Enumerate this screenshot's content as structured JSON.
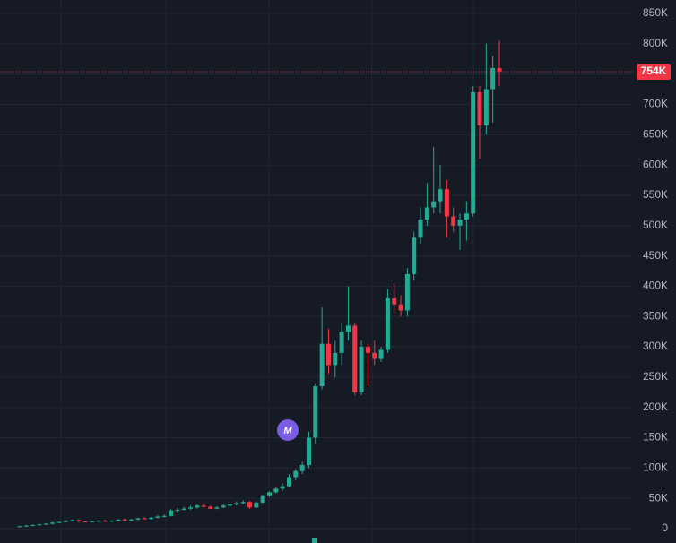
{
  "chart_data": {
    "type": "candlestick",
    "up_color": "#22ab94",
    "down_color": "#f23645",
    "grid": true,
    "ylim": [
      0,
      850000
    ],
    "yticks": [
      0,
      {
        "value": 50000,
        "label": "50K"
      },
      {
        "value": 100000,
        "label": "100K"
      },
      {
        "value": 150000,
        "label": "150K"
      },
      {
        "value": 200000,
        "label": "200K"
      },
      {
        "value": 250000,
        "label": "250K"
      },
      {
        "value": 300000,
        "label": "300K"
      },
      {
        "value": 350000,
        "label": "350K"
      },
      {
        "value": 400000,
        "label": "400K"
      },
      {
        "value": 450000,
        "label": "450K"
      },
      {
        "value": 500000,
        "label": "500K"
      },
      {
        "value": 550000,
        "label": "550K"
      },
      {
        "value": 600000,
        "label": "600K"
      },
      {
        "value": 650000,
        "label": "650K"
      },
      {
        "value": 700000,
        "label": "700K"
      },
      {
        "value": 750000,
        "label": "750K"
      },
      {
        "value": 800000,
        "label": "800K"
      },
      {
        "value": 850000,
        "label": "850K"
      }
    ],
    "current_price": {
      "value": 754000,
      "label": "754K"
    },
    "marker": "M",
    "ohlc": [
      [
        3000,
        5000,
        2000,
        4000
      ],
      [
        4000,
        6000,
        3000,
        5000
      ],
      [
        5000,
        7000,
        4000,
        6000
      ],
      [
        6000,
        8000,
        5000,
        7000
      ],
      [
        7000,
        9000,
        6000,
        8000
      ],
      [
        8000,
        11000,
        7000,
        10000
      ],
      [
        10000,
        12000,
        9000,
        11000
      ],
      [
        11000,
        14000,
        10000,
        13000
      ],
      [
        13000,
        15000,
        12000,
        14000
      ],
      [
        14000,
        16000,
        10000,
        12000
      ],
      [
        12000,
        13000,
        10000,
        11000
      ],
      [
        11000,
        13000,
        10000,
        12000
      ],
      [
        12000,
        14000,
        11000,
        13000
      ],
      [
        13000,
        15000,
        11000,
        12000
      ],
      [
        12000,
        14000,
        11000,
        13000
      ],
      [
        13000,
        16000,
        12000,
        15000
      ],
      [
        15000,
        17000,
        12000,
        13000
      ],
      [
        13000,
        16000,
        12000,
        15000
      ],
      [
        15000,
        18000,
        14000,
        17000
      ],
      [
        17000,
        19000,
        15000,
        16000
      ],
      [
        16000,
        19000,
        15000,
        18000
      ],
      [
        18000,
        22000,
        17000,
        20000
      ],
      [
        20000,
        23000,
        18000,
        21000
      ],
      [
        21000,
        32000,
        20000,
        30000
      ],
      [
        30000,
        34000,
        27000,
        31000
      ],
      [
        31000,
        36000,
        30000,
        33000
      ],
      [
        33000,
        38000,
        31000,
        35000
      ],
      [
        35000,
        40000,
        33000,
        38000
      ],
      [
        38000,
        42000,
        35000,
        36000
      ],
      [
        36000,
        38000,
        32000,
        33000
      ],
      [
        33000,
        37000,
        32000,
        35000
      ],
      [
        35000,
        40000,
        34000,
        38000
      ],
      [
        38000,
        42000,
        36000,
        40000
      ],
      [
        40000,
        45000,
        38000,
        42000
      ],
      [
        42000,
        47000,
        40000,
        44000
      ],
      [
        44000,
        46000,
        33000,
        35000
      ],
      [
        35000,
        45000,
        34000,
        43000
      ],
      [
        43000,
        56000,
        42000,
        55000
      ],
      [
        55000,
        62000,
        52000,
        60000
      ],
      [
        60000,
        68000,
        58000,
        66000
      ],
      [
        66000,
        75000,
        62000,
        70000
      ],
      [
        70000,
        90000,
        68000,
        85000
      ],
      [
        85000,
        98000,
        80000,
        95000
      ],
      [
        95000,
        110000,
        90000,
        105000
      ],
      [
        105000,
        160000,
        100000,
        150000
      ],
      [
        150000,
        240000,
        140000,
        235000
      ],
      [
        235000,
        365000,
        230000,
        305000
      ],
      [
        305000,
        330000,
        255000,
        270000
      ],
      [
        270000,
        310000,
        250000,
        290000
      ],
      [
        290000,
        340000,
        270000,
        325000
      ],
      [
        325000,
        400000,
        310000,
        335000
      ],
      [
        335000,
        340000,
        220000,
        225000
      ],
      [
        225000,
        310000,
        220000,
        300000
      ],
      [
        300000,
        305000,
        235000,
        290000
      ],
      [
        290000,
        310000,
        270000,
        280000
      ],
      [
        280000,
        300000,
        275000,
        295000
      ],
      [
        295000,
        395000,
        290000,
        380000
      ],
      [
        380000,
        405000,
        355000,
        370000
      ],
      [
        370000,
        385000,
        350000,
        360000
      ],
      [
        360000,
        430000,
        350000,
        420000
      ],
      [
        420000,
        490000,
        410000,
        480000
      ],
      [
        480000,
        530000,
        470000,
        510000
      ],
      [
        510000,
        570000,
        500000,
        530000
      ],
      [
        530000,
        630000,
        520000,
        540000
      ],
      [
        540000,
        600000,
        520000,
        560000
      ],
      [
        560000,
        575000,
        480000,
        515000
      ],
      [
        515000,
        530000,
        490000,
        500000
      ],
      [
        500000,
        520000,
        460000,
        510000
      ],
      [
        510000,
        540000,
        475000,
        520000
      ],
      [
        520000,
        730000,
        515000,
        720000
      ],
      [
        720000,
        730000,
        610000,
        665000
      ],
      [
        665000,
        800000,
        650000,
        725000
      ],
      [
        725000,
        780000,
        670000,
        760000
      ],
      [
        760000,
        805000,
        730000,
        754000
      ]
    ]
  }
}
